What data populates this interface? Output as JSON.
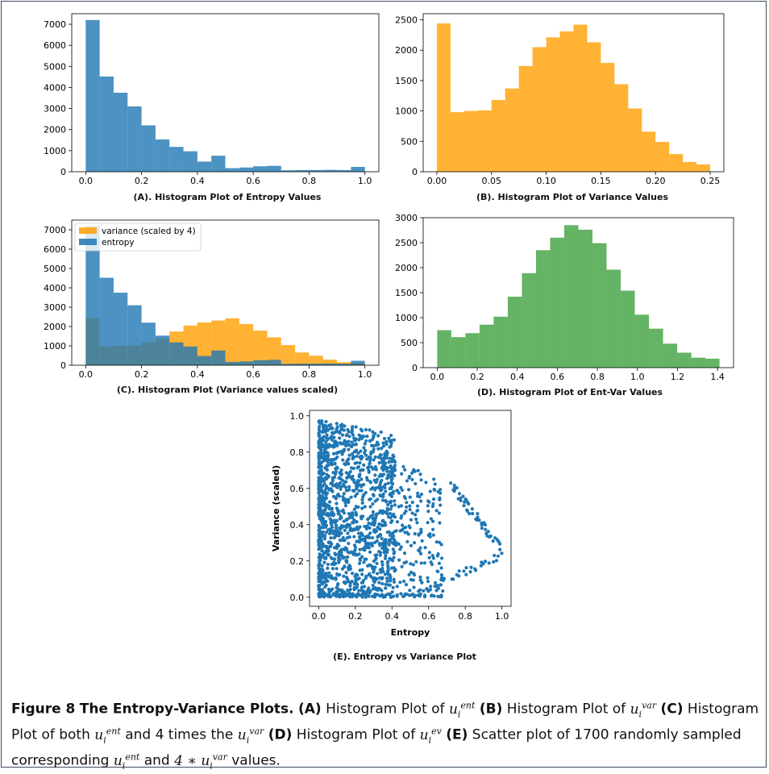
{
  "charts": [
    {
      "id": "A",
      "type": "bar",
      "title": "(A). Histogram Plot of Entropy Values",
      "xlim": [
        -0.05,
        1.05
      ],
      "ylim": [
        0,
        7500
      ],
      "xticks": [
        0.0,
        0.2,
        0.4,
        0.6,
        0.8,
        1.0
      ],
      "xtick_labels": [
        "0.0",
        "0.2",
        "0.4",
        "0.6",
        "0.8",
        "1.0"
      ],
      "yticks": [
        0,
        1000,
        2000,
        3000,
        4000,
        5000,
        6000,
        7000
      ],
      "ytick_labels": [
        "0",
        "1000",
        "2000",
        "3000",
        "4000",
        "5000",
        "6000",
        "7000"
      ],
      "series": [
        {
          "bin_start": 0.0,
          "bin_width": 0.05,
          "color": "#1f77b4",
          "opacity": 0.8,
          "values": [
            7200,
            4520,
            3750,
            3100,
            2200,
            1530,
            1180,
            970,
            480,
            760,
            170,
            200,
            260,
            280,
            70,
            80,
            80,
            90,
            80,
            230
          ]
        }
      ]
    },
    {
      "id": "B",
      "type": "bar",
      "title": "(B). Histogram Plot of Variance Values",
      "xlim": [
        -0.0125,
        0.2625
      ],
      "ylim": [
        0,
        2600
      ],
      "xticks": [
        0.0,
        0.05,
        0.1,
        0.15,
        0.2,
        0.25
      ],
      "xtick_labels": [
        "0.00",
        "0.05",
        "0.10",
        "0.15",
        "0.20",
        "0.25"
      ],
      "yticks": [
        0,
        500,
        1000,
        1500,
        2000,
        2500
      ],
      "ytick_labels": [
        "0",
        "500",
        "1000",
        "1500",
        "2000",
        "2500"
      ],
      "series": [
        {
          "bin_start": 0.0,
          "bin_width": 0.0125,
          "color": "#ff9f00",
          "opacity": 0.8,
          "values": [
            2440,
            980,
            1000,
            1010,
            1180,
            1370,
            1740,
            2050,
            2210,
            2310,
            2420,
            2130,
            1790,
            1440,
            1040,
            660,
            490,
            290,
            160,
            120
          ]
        }
      ]
    },
    {
      "id": "C",
      "type": "bar",
      "title": "(C). Histogram Plot (Variance values scaled)",
      "xlim": [
        -0.05,
        1.05
      ],
      "ylim": [
        0,
        7500
      ],
      "xticks": [
        0.0,
        0.2,
        0.4,
        0.6,
        0.8,
        1.0
      ],
      "xtick_labels": [
        "0.0",
        "0.2",
        "0.4",
        "0.6",
        "0.8",
        "1.0"
      ],
      "yticks": [
        0,
        1000,
        2000,
        3000,
        4000,
        5000,
        6000,
        7000
      ],
      "ytick_labels": [
        "0",
        "1000",
        "2000",
        "3000",
        "4000",
        "5000",
        "6000",
        "7000"
      ],
      "legend": [
        {
          "label": "variance (scaled by 4)",
          "color": "#ff9f00"
        },
        {
          "label": "entropy",
          "color": "#1f77b4"
        }
      ],
      "series": [
        {
          "name": "variance (scaled by 4)",
          "bin_start": 0.0,
          "bin_width": 0.05,
          "color": "#ff9f00",
          "opacity": 0.8,
          "values": [
            2440,
            980,
            1000,
            1010,
            1180,
            1370,
            1740,
            2050,
            2210,
            2310,
            2420,
            2130,
            1790,
            1440,
            1040,
            660,
            490,
            290,
            160,
            120
          ]
        },
        {
          "name": "entropy",
          "bin_start": 0.0,
          "bin_width": 0.05,
          "color": "#1f77b4",
          "opacity": 0.8,
          "values": [
            7200,
            4520,
            3750,
            3100,
            2200,
            1530,
            1180,
            970,
            480,
            760,
            170,
            200,
            260,
            280,
            70,
            80,
            80,
            90,
            80,
            230
          ]
        }
      ]
    },
    {
      "id": "D",
      "type": "bar",
      "title": "(D). Histogram Plot of Ent-Var Values",
      "xlim": [
        -0.07,
        1.48
      ],
      "ylim": [
        0,
        3000
      ],
      "xticks": [
        0.0,
        0.2,
        0.4,
        0.6,
        0.8,
        1.0,
        1.2,
        1.4
      ],
      "xtick_labels": [
        "0.0",
        "0.2",
        "0.4",
        "0.6",
        "0.8",
        "1.0",
        "1.2",
        "1.4"
      ],
      "yticks": [
        0,
        500,
        1000,
        1500,
        2000,
        2500,
        3000
      ],
      "ytick_labels": [
        "0",
        "500",
        "1000",
        "1500",
        "2000",
        "2500",
        "3000"
      ],
      "series": [
        {
          "bin_start": 0.0,
          "bin_width": 0.0705,
          "color": "#4aa64a",
          "opacity": 0.85,
          "values": [
            750,
            610,
            690,
            860,
            1020,
            1420,
            1890,
            2350,
            2600,
            2850,
            2760,
            2490,
            1960,
            1540,
            1060,
            780,
            480,
            300,
            200,
            180
          ]
        }
      ]
    }
  ],
  "scatter": {
    "id": "E",
    "type": "scatter",
    "title": "(E). Entropy vs Variance Plot",
    "xlabel": "Entropy",
    "ylabel": "Variance (scaled)",
    "xlim": [
      -0.05,
      1.05
    ],
    "ylim": [
      -0.05,
      1.03
    ],
    "xticks": [
      0.0,
      0.2,
      0.4,
      0.6,
      0.8,
      1.0
    ],
    "xtick_labels": [
      "0.0",
      "0.2",
      "0.4",
      "0.6",
      "0.8",
      "1.0"
    ],
    "yticks": [
      0.0,
      0.2,
      0.4,
      0.6,
      0.8,
      1.0
    ],
    "ytick_labels": [
      "0.0",
      "0.2",
      "0.4",
      "0.6",
      "0.8",
      "1.0"
    ],
    "color": "#1f77b4",
    "n_points": 1700
  },
  "caption": {
    "label": "Figure 8",
    "title": "The Entropy-Variance Plots.",
    "parts": [
      {
        "k": "A",
        "t": "Histogram Plot of"
      },
      {
        "k": "B",
        "t": "Histogram Plot of"
      },
      {
        "k": "C",
        "t": "Histogram Plot of both"
      },
      {
        "t2": "and 4 times the"
      },
      {
        "k": "D",
        "t": "Histogram Plot of"
      },
      {
        "k": "E",
        "t": "Scatter plot of 1700 randomly sampled corresponding"
      },
      {
        "t2": "and"
      },
      {
        "t2": "values."
      }
    ],
    "pA": "(A)",
    "tA": "Histogram Plot of",
    "pB": "(B)",
    "tB": "Histogram Plot of",
    "pC": "(C)",
    "tC": "Histogram Plot of both",
    "tC2": "and 4 times the",
    "pD": "(D)",
    "tD": "Histogram Plot of",
    "pE": "(E)",
    "tE": "Scatter plot of 1700 randomly sampled corresponding",
    "tE2": "and",
    "tE3": "values.",
    "m_ent": "u",
    "sub_i": "i",
    "sup_ent": "ent",
    "sup_var": "var",
    "sup_ev": "ev",
    "four": "4 ∗ "
  }
}
